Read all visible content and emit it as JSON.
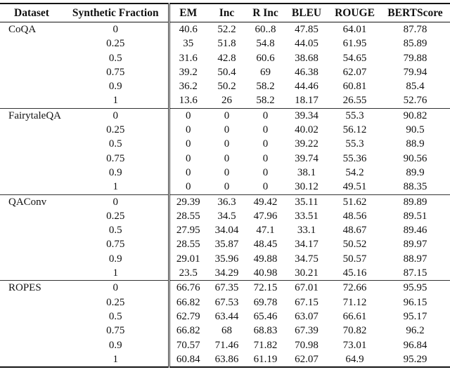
{
  "table": {
    "columns": [
      {
        "key": "dataset",
        "label": "Dataset"
      },
      {
        "key": "fraction",
        "label": "Synthetic Fraction"
      },
      {
        "key": "em",
        "label": "EM"
      },
      {
        "key": "inc",
        "label": "Inc"
      },
      {
        "key": "rinc",
        "label": "R Inc"
      },
      {
        "key": "bleu",
        "label": "BLEU"
      },
      {
        "key": "rouge",
        "label": "ROUGE"
      },
      {
        "key": "bert",
        "label": "BERTScore"
      }
    ],
    "groups": [
      {
        "dataset": "CoQA",
        "rows": [
          [
            "0",
            "40.6",
            "52.2",
            "60..8",
            "47.85",
            "64.01",
            "87.78"
          ],
          [
            "0.25",
            "35",
            "51.8",
            "54.8",
            "44.05",
            "61.95",
            "85.89"
          ],
          [
            "0.5",
            "31.6",
            "42.8",
            "60.6",
            "38.68",
            "54.65",
            "79.88"
          ],
          [
            "0.75",
            "39.2",
            "50.4",
            "69",
            "46.38",
            "62.07",
            "79.94"
          ],
          [
            "0.9",
            "36.2",
            "50.2",
            "58.2",
            "44.46",
            "60.81",
            "85.4"
          ],
          [
            "1",
            "13.6",
            "26",
            "58.2",
            "18.17",
            "26.55",
            "52.76"
          ]
        ]
      },
      {
        "dataset": "FairytaleQA",
        "rows": [
          [
            "0",
            "0",
            "0",
            "0",
            "39.34",
            "55.3",
            "90.82"
          ],
          [
            "0.25",
            "0",
            "0",
            "0",
            "40.02",
            "56.12",
            "90.5"
          ],
          [
            "0.5",
            "0",
            "0",
            "0",
            "39.22",
            "55.3",
            "88.9"
          ],
          [
            "0.75",
            "0",
            "0",
            "0",
            "39.74",
            "55.36",
            "90.56"
          ],
          [
            "0.9",
            "0",
            "0",
            "0",
            "38.1",
            "54.2",
            "89.9"
          ],
          [
            "1",
            "0",
            "0",
            "0",
            "30.12",
            "49.51",
            "88.35"
          ]
        ]
      },
      {
        "dataset": "QAConv",
        "rows": [
          [
            "0",
            "29.39",
            "36.3",
            "49.42",
            "35.11",
            "51.62",
            "89.89"
          ],
          [
            "0.25",
            "28.55",
            "34.5",
            "47.96",
            "33.51",
            "48.56",
            "89.51"
          ],
          [
            "0.5",
            "27.95",
            "34.04",
            "47.1",
            "33.1",
            "48.67",
            "89.46"
          ],
          [
            "0.75",
            "28.55",
            "35.87",
            "48.45",
            "34.17",
            "50.52",
            "89.97"
          ],
          [
            "0.9",
            "29.01",
            "35.96",
            "49.88",
            "34.75",
            "50.57",
            "88.97"
          ],
          [
            "1",
            "23.5",
            "34.29",
            "40.98",
            "30.21",
            "45.16",
            "87.15"
          ]
        ]
      },
      {
        "dataset": "ROPES",
        "rows": [
          [
            "0",
            "66.76",
            "67.35",
            "72.15",
            "67.01",
            "72.66",
            "95.95"
          ],
          [
            "0.25",
            "66.82",
            "67.53",
            "69.78",
            "67.15",
            "71.12",
            "96.15"
          ],
          [
            "0.5",
            "62.79",
            "63.44",
            "65.46",
            "63.07",
            "66.61",
            "95.17"
          ],
          [
            "0.75",
            "66.82",
            "68",
            "68.83",
            "67.39",
            "70.82",
            "96.2"
          ],
          [
            "0.9",
            "70.57",
            "71.46",
            "71.82",
            "70.98",
            "73.01",
            "96.84"
          ],
          [
            "1",
            "60.84",
            "63.86",
            "61.19",
            "62.07",
            "64.9",
            "95.29"
          ]
        ]
      }
    ]
  }
}
